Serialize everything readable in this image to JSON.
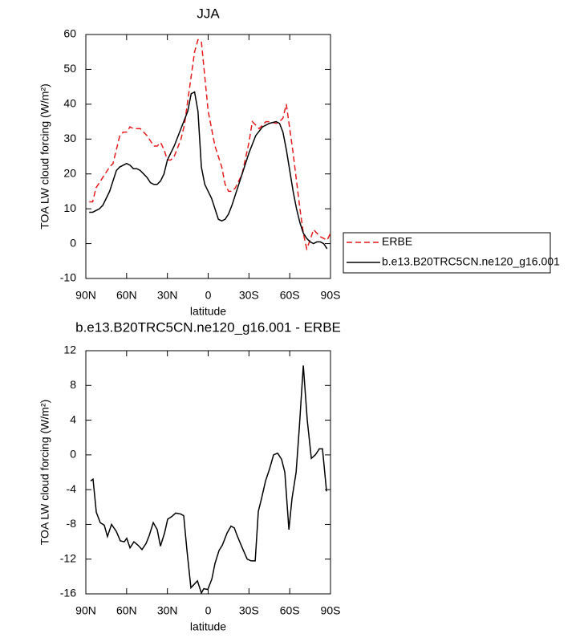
{
  "chart_data": [
    {
      "type": "line",
      "title": "JJA",
      "xlabel": "latitude",
      "ylabel": "TOA LW cloud forcing (W/m²)",
      "xlim": [
        90,
        -90
      ],
      "xticks": [
        {
          "value": 90,
          "label": "90N"
        },
        {
          "value": 60,
          "label": "60N"
        },
        {
          "value": 30,
          "label": "30N"
        },
        0,
        {
          "value": -30,
          "label": "30S"
        },
        {
          "value": -60,
          "label": "60S"
        },
        {
          "value": -90,
          "label": "90S"
        }
      ],
      "ylim": [
        -10,
        60
      ],
      "yticks": [
        -10,
        0,
        10,
        20,
        30,
        40,
        50,
        60
      ],
      "legend": "outside-right",
      "series": [
        {
          "name": "ERBE",
          "color": "#e41a1c",
          "line_style": "dashed",
          "x": [
            87.5,
            85,
            82.5,
            77.5,
            72.5,
            70,
            65,
            62.5,
            60,
            57.5,
            55,
            50,
            45,
            40,
            37.5,
            35,
            32.5,
            30,
            27.5,
            25,
            20,
            17.5,
            15,
            12.5,
            10,
            7.5,
            5,
            2.5,
            0,
            -2.5,
            -5,
            -10,
            -12.5,
            -15,
            -17.5,
            -20,
            -25,
            -30,
            -32.5,
            -35,
            -37.5,
            -40,
            -42.5,
            -45,
            -50,
            -52.5,
            -55,
            -57.5,
            -60,
            -62.5,
            -65,
            -67.5,
            -70,
            -72.5,
            -75,
            -77.5,
            -80,
            -82.5,
            -85,
            -87.5,
            -90
          ],
          "values": [
            12,
            12,
            16,
            19,
            22,
            23,
            31,
            32,
            32,
            33.5,
            33,
            33,
            31,
            28,
            28,
            29,
            27,
            24,
            24,
            25,
            30,
            34,
            41,
            48,
            55,
            58.5,
            58,
            48,
            38,
            33,
            28,
            22,
            17,
            15,
            15,
            16,
            20,
            29,
            35,
            34,
            33,
            34,
            35,
            35,
            34.5,
            35,
            36,
            40,
            33,
            26,
            18,
            10,
            3,
            -1.5,
            1,
            4,
            3,
            2,
            1.5,
            1,
            3
          ]
        },
        {
          "name": "b.e13.B20TRC5CN.ne120_g16.001",
          "color": "#000000",
          "line_style": "solid",
          "x": [
            87.5,
            85,
            82.5,
            80,
            77.5,
            75,
            72.5,
            70,
            67.5,
            65,
            60,
            57.5,
            55,
            52.5,
            50,
            47.5,
            45,
            42.5,
            40,
            37.5,
            35,
            32.5,
            30,
            25,
            20,
            15,
            12.5,
            10,
            7.5,
            5,
            2.5,
            0,
            -2.5,
            -5,
            -7.5,
            -10,
            -12.5,
            -15,
            -17.5,
            -20,
            -25,
            -30,
            -35,
            -40,
            -45,
            -50,
            -52.5,
            -55,
            -57.5,
            -60,
            -62.5,
            -65,
            -67.5,
            -70,
            -72.5,
            -75,
            -77.5,
            -80,
            -82.5,
            -85,
            -87.5
          ],
          "values": [
            9,
            9,
            9.5,
            10,
            11,
            13,
            15,
            18,
            21,
            22,
            23,
            22.5,
            21.5,
            21.5,
            21,
            20,
            19,
            17.5,
            17,
            17,
            18,
            20,
            24,
            28,
            33,
            38,
            43,
            43.5,
            38,
            22,
            17,
            15,
            13,
            10,
            7,
            6.5,
            7,
            8.5,
            11,
            14,
            20,
            26,
            31,
            33.5,
            34.5,
            35,
            34.5,
            32,
            27,
            21,
            15,
            10,
            6,
            3,
            1.5,
            0.5,
            0,
            0.5,
            0.5,
            0,
            -1.5
          ]
        }
      ]
    },
    {
      "type": "line",
      "title": "b.e13.B20TRC5CN.ne120_g16.001 - ERBE",
      "xlabel": "latitude",
      "ylabel": "TOA LW cloud forcing (W/m²)",
      "xlim": [
        90,
        -90
      ],
      "xticks": [
        {
          "value": 90,
          "label": "90N"
        },
        {
          "value": 60,
          "label": "60N"
        },
        {
          "value": 30,
          "label": "30N"
        },
        0,
        {
          "value": -30,
          "label": "30S"
        },
        {
          "value": -60,
          "label": "60S"
        },
        {
          "value": -90,
          "label": "90S"
        }
      ],
      "ylim": [
        -16,
        12
      ],
      "yticks": [
        -16,
        -12,
        -8,
        -4,
        0,
        4,
        8,
        12
      ],
      "series": [
        {
          "color": "#000000",
          "line_style": "solid",
          "x": [
            86.5,
            84.7,
            82.3,
            79.4,
            76.4,
            74.1,
            71.1,
            67.6,
            64.6,
            61.7,
            59.9,
            57.5,
            54.6,
            51.6,
            48.7,
            45.7,
            43.4,
            40.4,
            37.5,
            35.1,
            32.1,
            29.8,
            26.8,
            23.9,
            20.3,
            18,
            15.6,
            12.7,
            10.9,
            7.9,
            5,
            3.2,
            0.3,
            -2.7,
            -5,
            -8,
            -10.4,
            -13.9,
            -16.8,
            -19.2,
            -21.6,
            -25.1,
            -28.7,
            -31.6,
            -34.6,
            -36.9,
            -39.3,
            -42.2,
            -45.2,
            -48.1,
            -51.1,
            -54,
            -56.4,
            -59.4,
            -61.7,
            -64.7,
            -67,
            -70,
            -72.9,
            -75.9,
            -78.8,
            -81.8,
            -84.1,
            -87.1
          ],
          "values": [
            -3,
            -2.8,
            -6.6,
            -7.8,
            -8.1,
            -9.4,
            -8,
            -8.8,
            -9.9,
            -10,
            -9.6,
            -10.7,
            -10,
            -10.4,
            -10.9,
            -10.2,
            -9.3,
            -7.8,
            -8.6,
            -10.5,
            -9,
            -7.4,
            -7.1,
            -6.7,
            -6.8,
            -7,
            -11,
            -15.3,
            -15,
            -14.5,
            -15.9,
            -15.4,
            -15.5,
            -14.3,
            -12.5,
            -11,
            -10.4,
            -9,
            -8.2,
            -8.4,
            -9.4,
            -10.7,
            -12,
            -12.2,
            -12.2,
            -6.5,
            -5,
            -3,
            -1.6,
            0,
            0.2,
            -0.5,
            -2,
            -8.6,
            -5,
            -2,
            3,
            10.3,
            4,
            -0.4,
            0,
            0.7,
            0.7,
            -4.2
          ]
        }
      ]
    }
  ]
}
